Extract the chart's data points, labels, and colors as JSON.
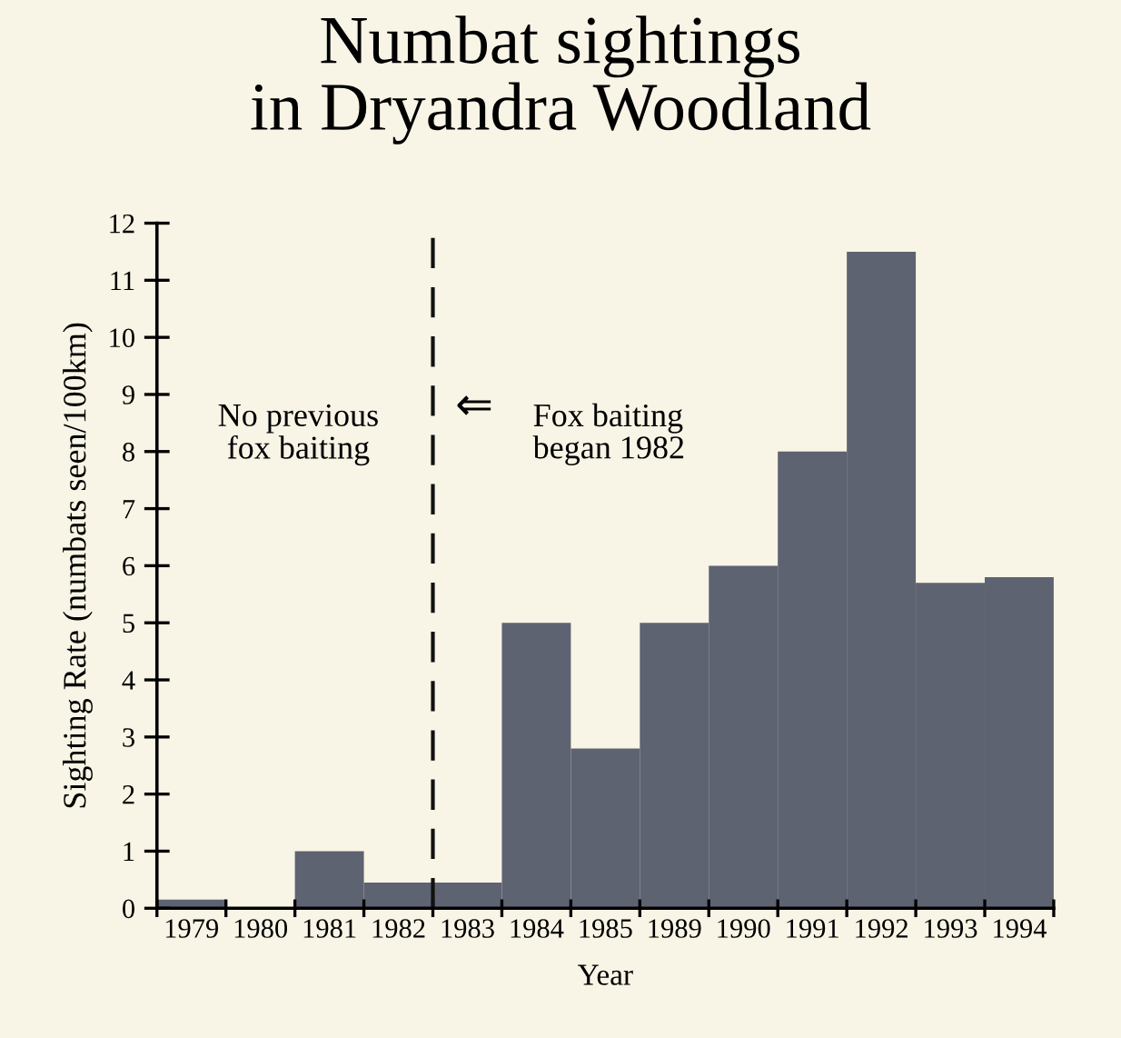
{
  "chart_data": {
    "type": "bar",
    "title": "Numbat sightings\nin Dryandra Woodland",
    "xlabel": "Year",
    "ylabel": "Sighting Rate (numbats seen/100km)",
    "categories": [
      "1979",
      "1980",
      "1981",
      "1982",
      "1983",
      "1984",
      "1985",
      "1989",
      "1990",
      "1991",
      "1992",
      "1993",
      "1994"
    ],
    "values": [
      0.15,
      0,
      1.0,
      0.45,
      0.45,
      5.0,
      2.8,
      5.0,
      6.0,
      8.0,
      11.5,
      5.7,
      5.8
    ],
    "color": "#5e6372",
    "ylim": [
      0,
      12
    ],
    "yticks": [
      0,
      1,
      2,
      3,
      4,
      5,
      6,
      7,
      8,
      9,
      10,
      11,
      12
    ],
    "annotations": [
      "No previous\nfox baiting",
      "⇐",
      "Fox baiting\nbegan 1982"
    ],
    "grid": false,
    "legend": false
  }
}
